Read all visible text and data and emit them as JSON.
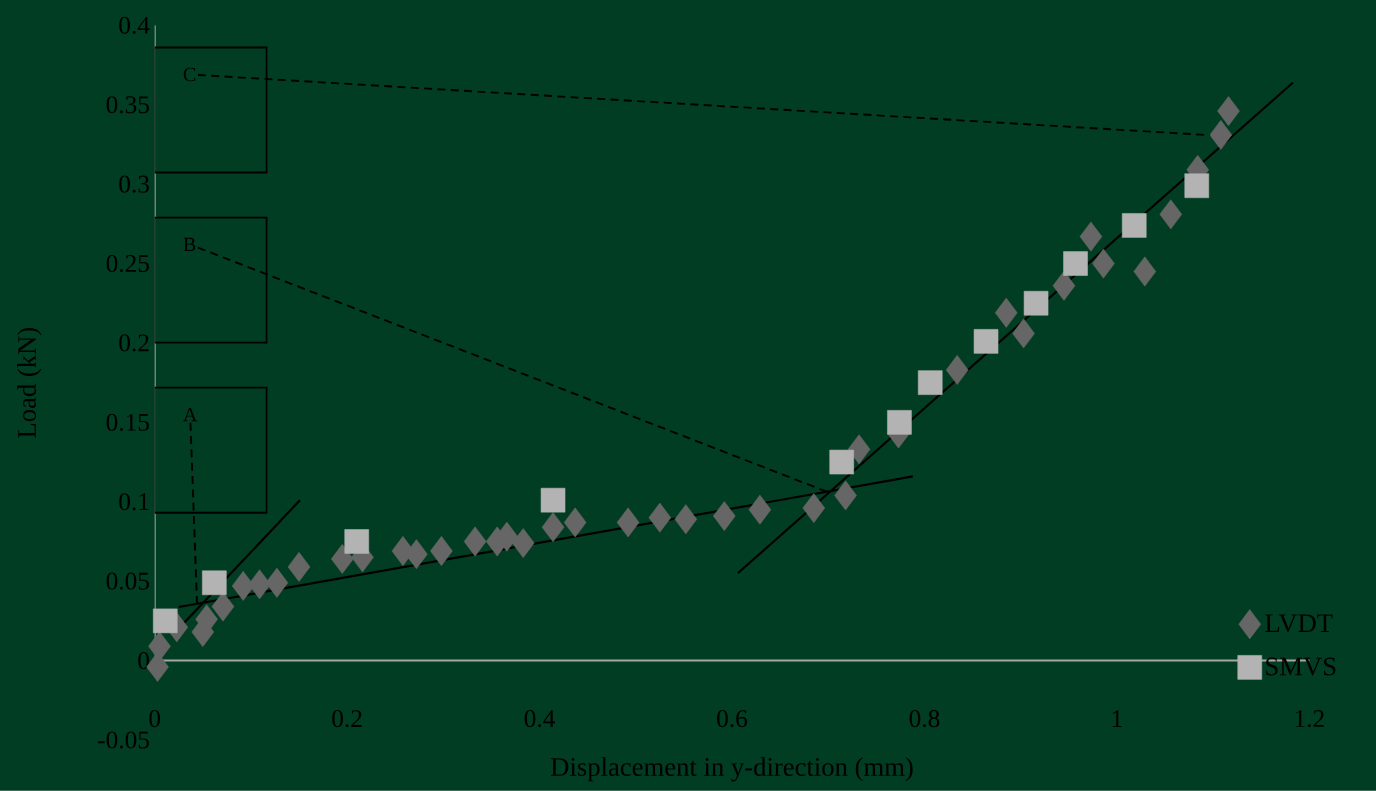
{
  "chart_data": {
    "type": "scatter",
    "xlabel": "Displacement in y-direction (mm)",
    "ylabel": "Load (kN)",
    "xlim": [
      0,
      1.2
    ],
    "xticks": [
      0,
      0.2,
      0.4,
      0.6,
      0.8,
      1,
      1.2
    ],
    "ylim": [
      -0.05,
      0.4
    ],
    "yticks": [
      -0.05,
      0,
      0.05,
      0.1,
      0.15,
      0.2,
      0.25,
      0.3,
      0.35,
      0.4
    ],
    "grid": false,
    "legend": "bottom right",
    "series": [
      {
        "name": "LVDT",
        "color": "#666666",
        "marker": "diamond",
        "x": [
          0.003,
          0.005,
          0.023,
          0.05,
          0.054,
          0.071,
          0.092,
          0.109,
          0.127,
          0.15,
          0.195,
          0.216,
          0.258,
          0.272,
          0.298,
          0.333,
          0.356,
          0.366,
          0.383,
          0.414,
          0.437,
          0.492,
          0.525,
          0.552,
          0.592,
          0.629,
          0.685,
          0.718,
          0.732,
          0.773,
          0.834,
          0.885,
          0.903,
          0.945,
          0.973,
          0.986,
          1.029,
          1.056,
          1.084,
          1.108,
          1.116
        ],
        "values": [
          -0.004,
          0.009,
          0.021,
          0.018,
          0.026,
          0.034,
          0.047,
          0.048,
          0.049,
          0.059,
          0.064,
          0.065,
          0.069,
          0.067,
          0.069,
          0.075,
          0.075,
          0.078,
          0.074,
          0.084,
          0.087,
          0.087,
          0.09,
          0.089,
          0.091,
          0.095,
          0.096,
          0.104,
          0.133,
          0.143,
          0.183,
          0.219,
          0.206,
          0.236,
          0.267,
          0.25,
          0.245,
          0.281,
          0.309,
          0.331,
          0.346
        ]
      },
      {
        "name": "SMVS",
        "color": "#b3b3b3",
        "marker": "square",
        "x": [
          0.011,
          0.062,
          0.21,
          0.414,
          0.714,
          0.774,
          0.806,
          0.864,
          0.916,
          0.957,
          1.018,
          1.083
        ],
        "values": [
          0.025,
          0.049,
          0.075,
          0.101,
          0.125,
          0.15,
          0.175,
          0.201,
          0.225,
          0.25,
          0.274,
          0.299
        ]
      },
      {
        "type": "line",
        "color": "#000000",
        "x": [
          0.03,
          0.151
        ],
        "values": [
          0.0233,
          0.101
        ]
      },
      {
        "type": "line",
        "color": "#000000",
        "x": [
          0.025,
          0.788
        ],
        "values": [
          0.0337,
          0.116
        ]
      },
      {
        "type": "line",
        "color": "#000000",
        "x": [
          0.606,
          1.183
        ],
        "values": [
          0.055,
          0.364
        ]
      }
    ],
    "annotations": [
      {
        "text": "A",
        "x": 0.044,
        "y": 0.036
      },
      {
        "text": "B",
        "x": 0.7,
        "y": 0.106
      },
      {
        "text": "C",
        "x": 1.12,
        "y": 0.33
      }
    ]
  }
}
